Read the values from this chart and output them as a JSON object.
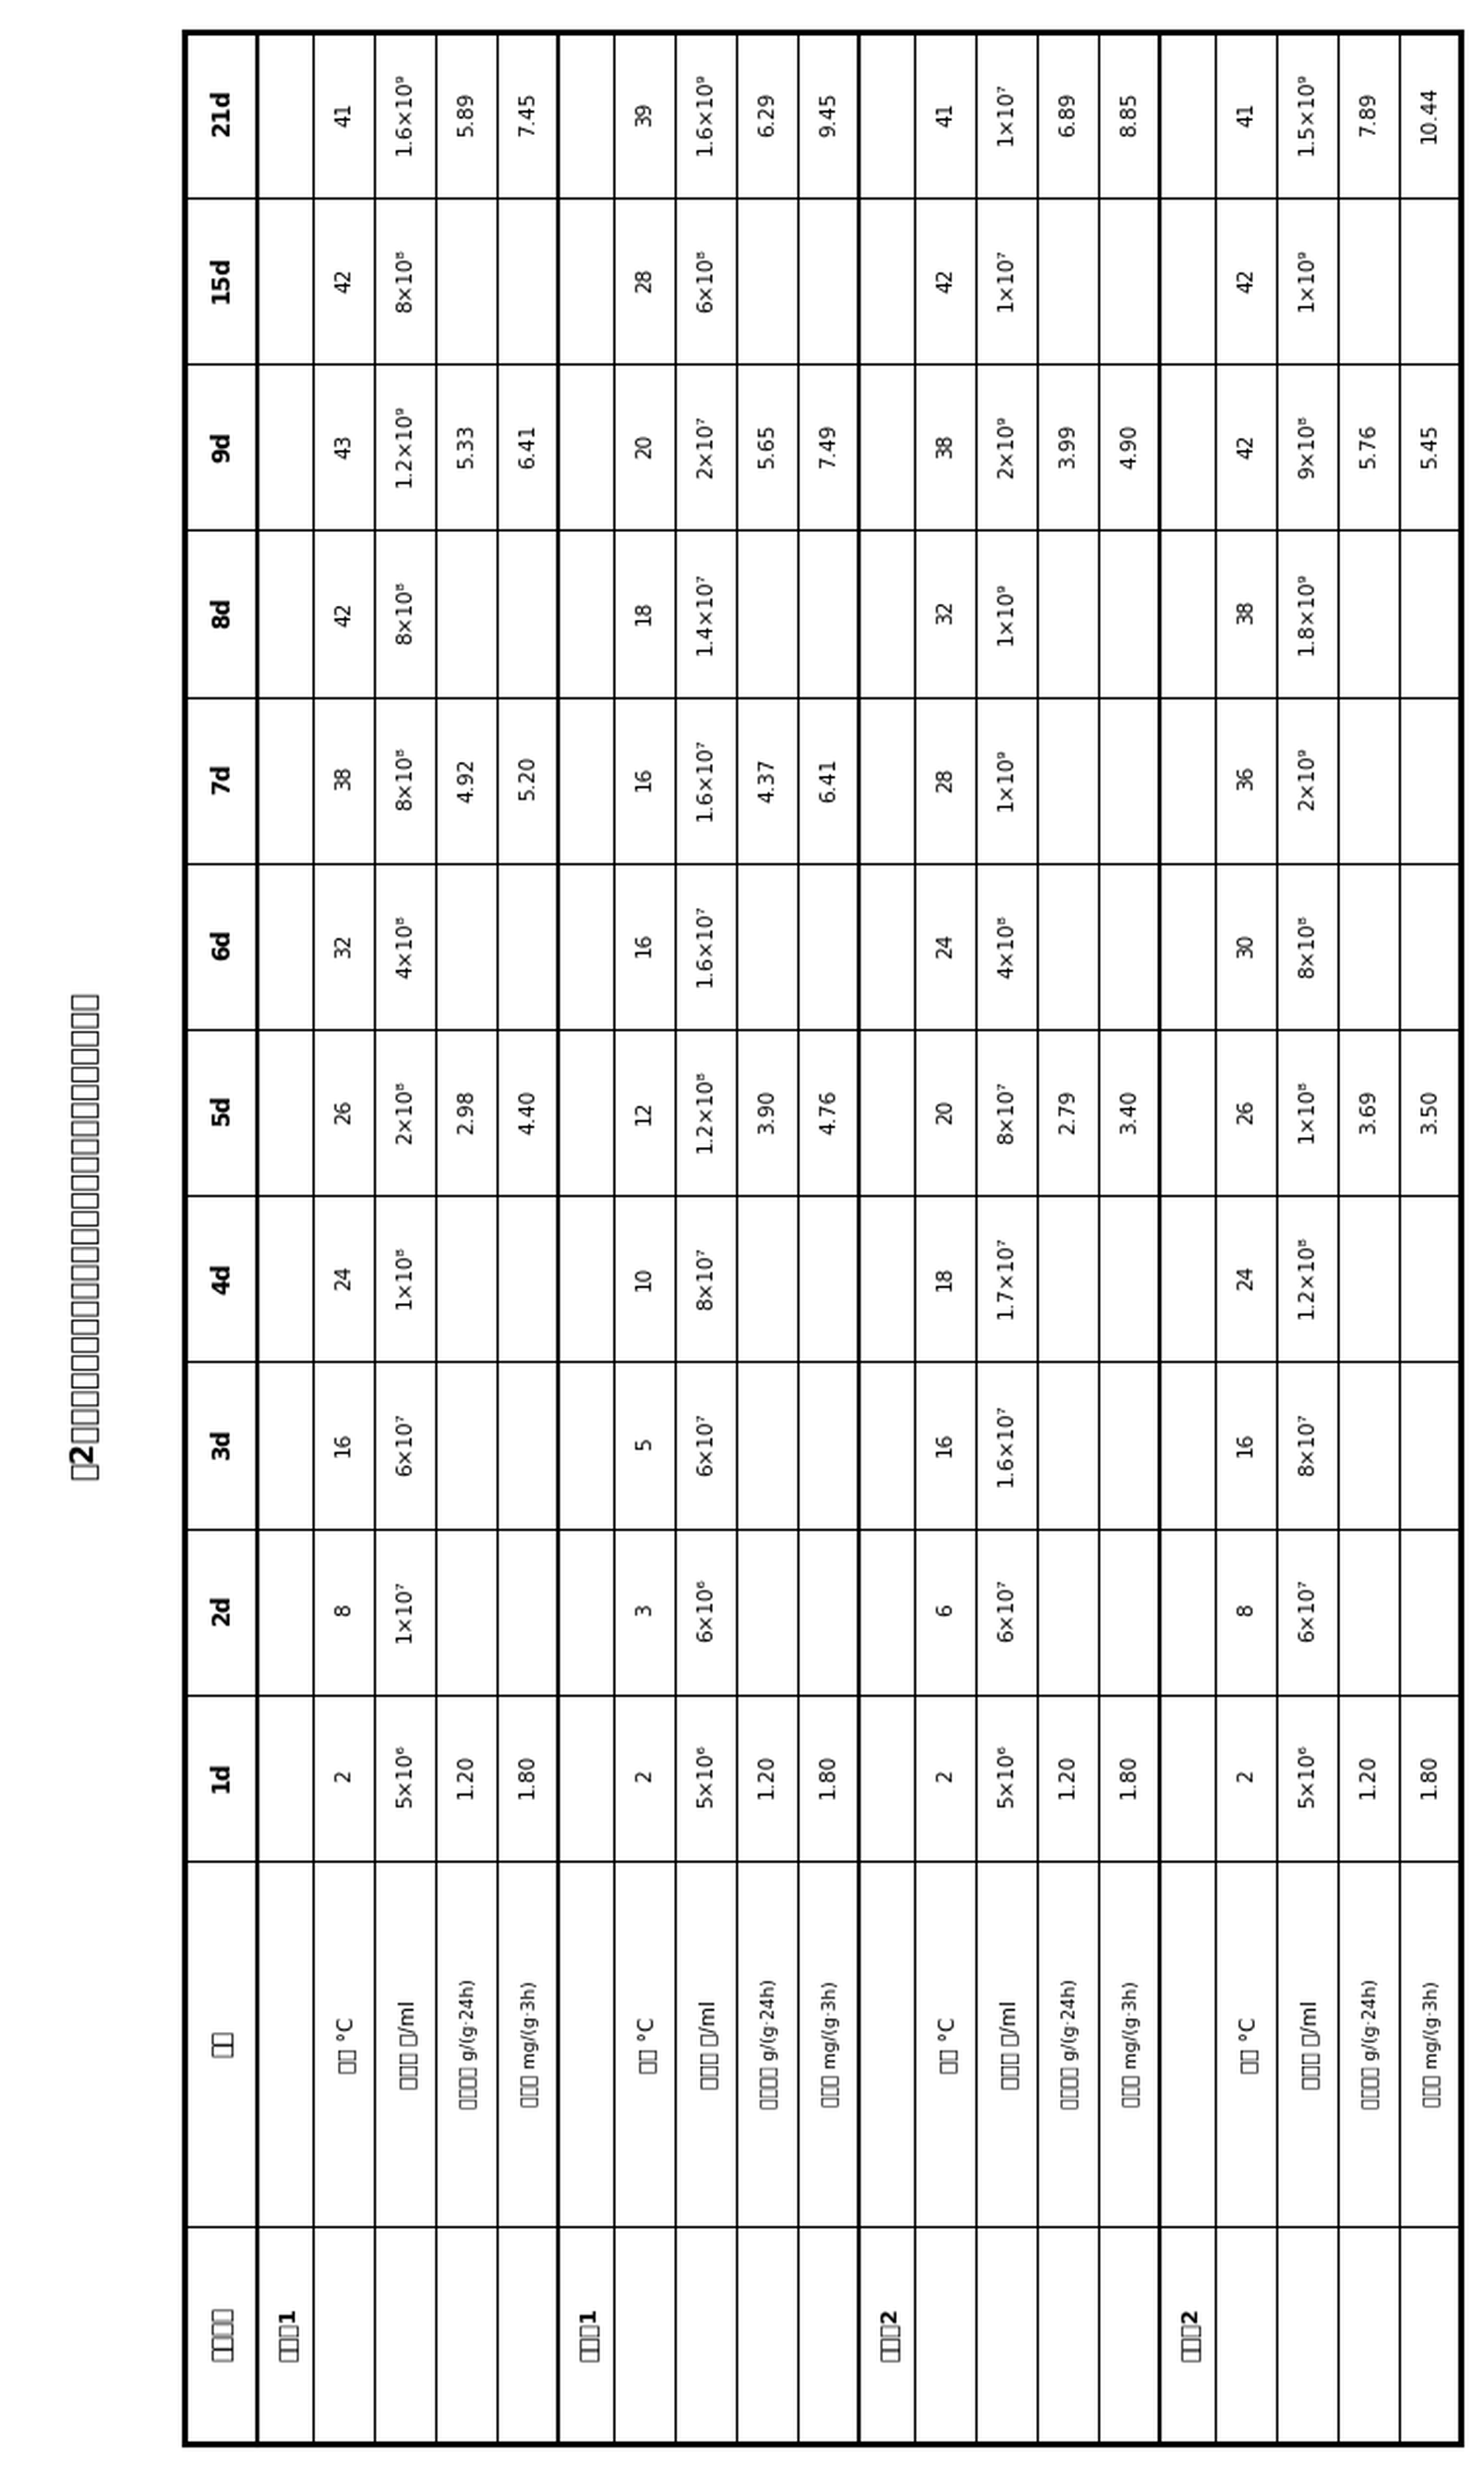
{
  "title": "表2：低温快速启动的发酵床养猪复合微生物菌剂实施例效果",
  "time_cols": [
    "1d",
    "2d",
    "3d",
    "4d",
    "5d",
    "6d",
    "7d",
    "8d",
    "9d",
    "15d",
    "21d"
  ],
  "row_groups": [
    {
      "group_label": "实施例1",
      "rows": [
        {
          "label": "温度 °C",
          "values": [
            "2",
            "8",
            "16",
            "24",
            "26",
            "32",
            "38",
            "42",
            "43",
            "42",
            "41"
          ]
        },
        {
          "label": "总菌数 个/ml",
          "values": [
            "5×10⁶",
            "1×10⁷",
            "6×10⁷",
            "1×10⁸",
            "2×10⁸",
            "4×10⁸",
            "8×10⁸",
            "8×10⁸",
            "1.2×10⁹",
            "8×10⁸",
            "1.6×10⁹"
          ]
        },
        {
          "label": "纤维素酶 g/(g·24h)",
          "values": [
            "1.20",
            "",
            "",
            "",
            "2.98",
            "",
            "4.92",
            "",
            "5.33",
            "",
            "5.89"
          ]
        },
        {
          "label": "脲酶活 mg/(g·3h)",
          "values": [
            "1.80",
            "",
            "",
            "",
            "4.40",
            "",
            "5.20",
            "",
            "6.41",
            "",
            "7.45"
          ]
        }
      ]
    },
    {
      "group_label": "对比例1",
      "rows": [
        {
          "label": "温度 °C",
          "values": [
            "2",
            "3",
            "5",
            "10",
            "12",
            "16",
            "16",
            "18",
            "20",
            "28",
            "39"
          ]
        },
        {
          "label": "总菌数 个/ml",
          "values": [
            "5×10⁶",
            "6×10⁶",
            "6×10⁷",
            "8×10⁷",
            "1.2×10⁸",
            "1.6×10⁷",
            "1.6×10⁷",
            "1.4×10⁷",
            "2×10⁷",
            "6×10⁸",
            "1.6×10⁹"
          ]
        },
        {
          "label": "纤维素酶 g/(g·24h)",
          "values": [
            "1.20",
            "",
            "",
            "",
            "3.90",
            "",
            "4.37",
            "",
            "5.65",
            "",
            "6.29"
          ]
        },
        {
          "label": "脲酶活 mg/(g·3h)",
          "values": [
            "1.80",
            "",
            "",
            "",
            "4.76",
            "",
            "6.41",
            "",
            "7.49",
            "",
            "9.45"
          ]
        }
      ]
    },
    {
      "group_label": "对比例2",
      "rows": [
        {
          "label": "温度 °C",
          "values": [
            "2",
            "6",
            "16",
            "18",
            "20",
            "24",
            "28",
            "32",
            "38",
            "42",
            "41"
          ]
        },
        {
          "label": "总菌数 个/ml",
          "values": [
            "5×10⁶",
            "6×10⁷",
            "1.6×10⁷",
            "1.7×10⁷",
            "8×10⁷",
            "4×10⁸",
            "1×10⁹",
            "1×10⁹",
            "2×10⁹",
            "1×10⁷",
            "1×10⁷"
          ]
        },
        {
          "label": "纤维素酶 g/(g·24h)",
          "values": [
            "1.20",
            "",
            "",
            "",
            "2.79",
            "",
            "",
            "",
            "3.99",
            "",
            "6.89"
          ]
        },
        {
          "label": "脲酶活 mg/(g·3h)",
          "values": [
            "1.80",
            "",
            "",
            "",
            "3.40",
            "",
            "",
            "",
            "4.90",
            "",
            "8.85"
          ]
        }
      ]
    },
    {
      "group_label": "实施例2",
      "rows": [
        {
          "label": "温度 °C",
          "values": [
            "2",
            "8",
            "16",
            "24",
            "26",
            "30",
            "36",
            "38",
            "42",
            "42",
            "41"
          ]
        },
        {
          "label": "总菌数 个/ml",
          "values": [
            "5×10⁶",
            "6×10⁷",
            "8×10⁷",
            "1.2×10⁸",
            "1×10⁸",
            "8×10⁸",
            "2×10⁹",
            "1.8×10⁹",
            "9×10⁸",
            "1×10⁹",
            "1.5×10⁹"
          ]
        },
        {
          "label": "纤维素酶 g/(g·24h)",
          "values": [
            "1.20",
            "",
            "",
            "",
            "3.69",
            "",
            "",
            "",
            "5.76",
            "",
            "7.89"
          ]
        },
        {
          "label": "脲酶活 mg/(g·3h)",
          "values": [
            "1.80",
            "",
            "",
            "",
            "3.50",
            "",
            "",
            "",
            "5.45",
            "",
            "10.44"
          ]
        }
      ]
    }
  ],
  "col0_header": "测定结果",
  "col1_header": "时间",
  "bg_color": "white",
  "line_color": "black",
  "title_fontsize": 11,
  "cell_fontsize": 7.5,
  "header_fontsize": 8.5,
  "group_fontsize": 8.0
}
